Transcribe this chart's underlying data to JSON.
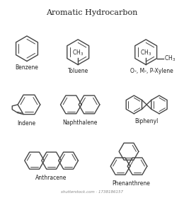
{
  "title": "Aromatic Hydrocarbon",
  "bg_color": "#ffffff",
  "line_color": "#444444",
  "text_color": "#222222",
  "lw": 1.0,
  "lw2": 0.7,
  "labels": {
    "benzene": "Benzene",
    "toluene": "Toluene",
    "xylene": "O-, M-, P-Xylene",
    "indene": "Indene",
    "naphthalene": "Naphthalene",
    "biphenyl": "Biphenyl",
    "anthracene": "Anthracene",
    "phenanthrene": "Phenanthrene"
  },
  "watermark": "shutterstock.com · 1738186157"
}
